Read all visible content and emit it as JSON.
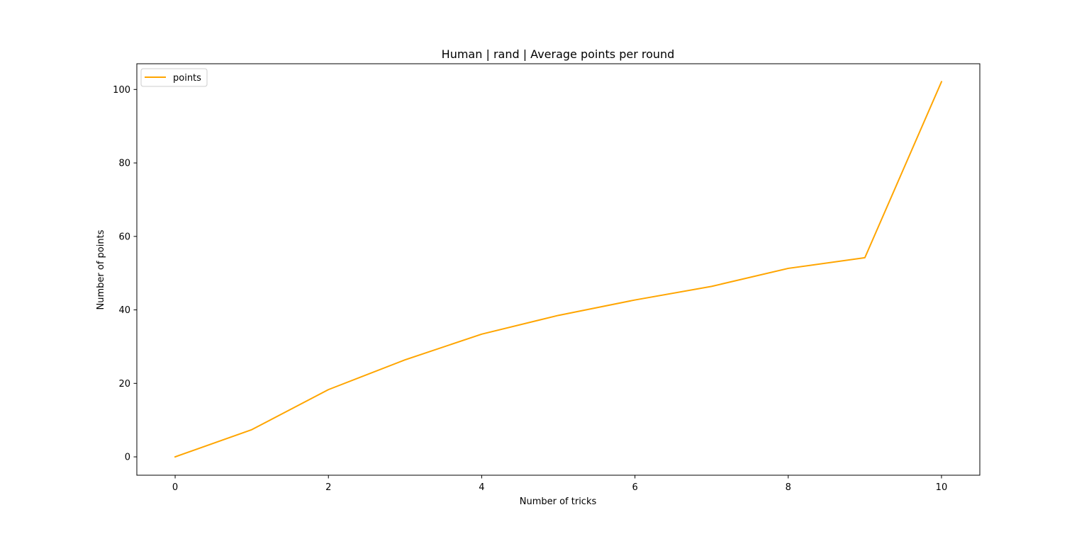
{
  "chart_data": {
    "type": "line",
    "title": "Human | rand | Average points per round",
    "xlabel": "Number of tricks",
    "ylabel": "Number of points",
    "xlim": [
      -0.5,
      10.5
    ],
    "ylim": [
      -5,
      107
    ],
    "xticks": [
      0,
      2,
      4,
      6,
      8,
      10
    ],
    "yticks": [
      0,
      20,
      40,
      60,
      80,
      100
    ],
    "grid": false,
    "legend_position": "upper left",
    "series": [
      {
        "name": "points",
        "color": "#ffa500",
        "x": [
          0,
          1,
          2,
          3,
          4,
          5,
          6,
          7,
          8,
          9,
          10
        ],
        "y": [
          0,
          7.4,
          18.3,
          26.4,
          33.4,
          38.5,
          42.7,
          46.4,
          51.3,
          54.2,
          102.1
        ]
      }
    ]
  }
}
